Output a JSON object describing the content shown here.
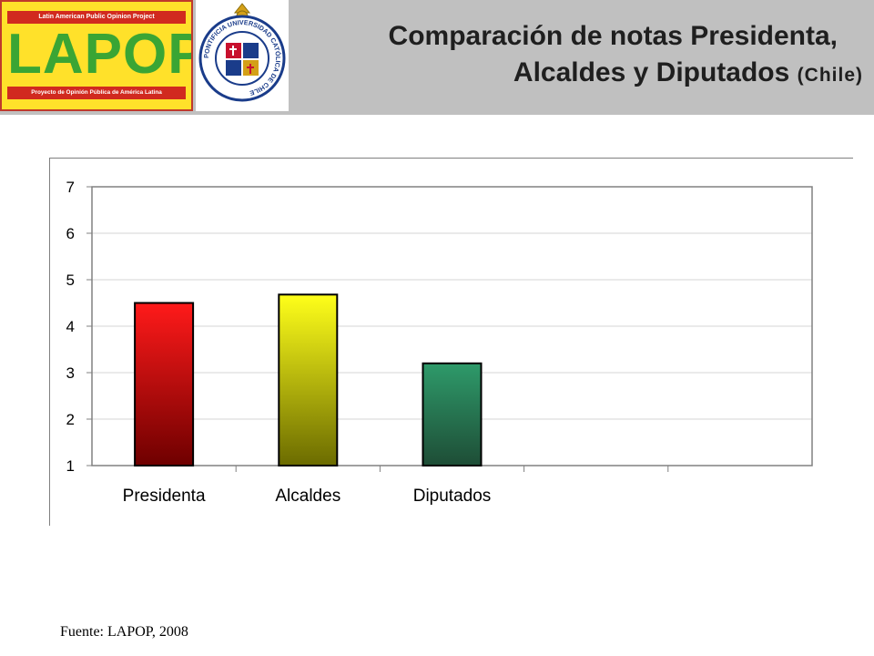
{
  "header": {
    "logo_top": "Latin American Public Opinion Project",
    "logo_word": "LAPOP",
    "logo_bottom": "Proyecto de Opinión Pública de América Latina",
    "seal_text": "PONTIFICIA UNIVERSIDAD CATÓLICA DE CHILE",
    "title_line1": "Comparación de notas Presidenta,",
    "title_line2": "Alcaldes y Diputados",
    "title_country": "(Chile)"
  },
  "source": "Fuente: LAPOP, 2008",
  "colors": {
    "presidenta_top": "#ff1a1a",
    "presidenta_bottom": "#6e0000",
    "alcaldes_top": "#ffff1a",
    "alcaldes_bottom": "#6b6b00",
    "diputados_top": "#2e9a6a",
    "diputados_bottom": "#1e4d36",
    "grid": "#d4d4d4",
    "axis": "#808080"
  },
  "chart_data": {
    "type": "bar",
    "categories": [
      "Presidenta",
      "Alcaldes",
      "Diputados",
      "",
      ""
    ],
    "values": [
      4.5,
      4.68,
      3.2,
      null,
      null
    ],
    "ylim": [
      1,
      7
    ],
    "yticks": [
      1,
      2,
      3,
      4,
      5,
      6,
      7
    ],
    "grid": true,
    "title": "",
    "xlabel": "",
    "ylabel": ""
  }
}
